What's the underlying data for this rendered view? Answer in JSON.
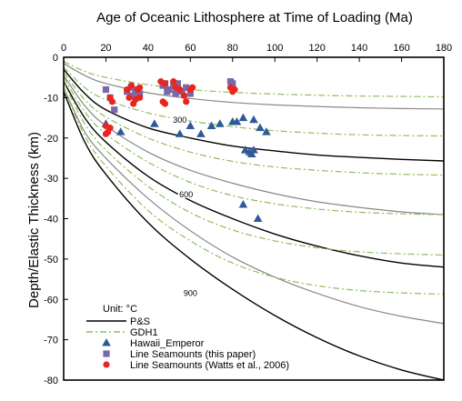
{
  "chart_data": {
    "type": "line",
    "title": "Age of Oceanic Lithosphere at Time of Loading (Ma)",
    "xlabel": "",
    "ylabel": "Depth/Elastic Thickness (km)",
    "xlim": [
      0,
      180
    ],
    "ylim": [
      -80,
      0
    ],
    "x_axis_position": "top",
    "x_ticks": [
      0,
      20,
      40,
      60,
      80,
      100,
      120,
      140,
      160,
      180
    ],
    "y_ticks": [
      0,
      -10,
      -20,
      -30,
      -40,
      -50,
      -60,
      -70,
      -80
    ],
    "legend_title": "Unit:  °C",
    "legend_position": "bottom-left",
    "isotherm_labels": [
      {
        "text": "300",
        "x": 55,
        "y": -15.5
      },
      {
        "text": "600",
        "x": 58,
        "y": -34
      },
      {
        "text": "900",
        "x": 60,
        "y": -58.5
      }
    ],
    "series": [
      {
        "name": "P&S",
        "style": "solid",
        "color": "#000000",
        "points": [
          [
            0,
            -3
          ],
          [
            10,
            -9
          ],
          [
            20,
            -13
          ],
          [
            40,
            -17.5
          ],
          [
            60,
            -20
          ],
          [
            80,
            -22
          ],
          [
            100,
            -23.2
          ],
          [
            120,
            -24.2
          ],
          [
            140,
            -24.8
          ],
          [
            160,
            -25.3
          ],
          [
            180,
            -25.7
          ]
        ]
      },
      {
        "style": "solid",
        "color": "#000000",
        "points": [
          [
            0,
            -6
          ],
          [
            10,
            -15
          ],
          [
            20,
            -21
          ],
          [
            40,
            -29.5
          ],
          [
            60,
            -35.5
          ],
          [
            80,
            -40
          ],
          [
            100,
            -43.8
          ],
          [
            120,
            -46.8
          ],
          [
            140,
            -49.2
          ],
          [
            160,
            -51
          ],
          [
            180,
            -52
          ]
        ]
      },
      {
        "style": "solid",
        "color": "#000000",
        "points": [
          [
            0,
            -8.5
          ],
          [
            10,
            -21
          ],
          [
            20,
            -29
          ],
          [
            40,
            -41
          ],
          [
            60,
            -50
          ],
          [
            80,
            -57.5
          ],
          [
            100,
            -64
          ],
          [
            120,
            -69.5
          ],
          [
            140,
            -74
          ],
          [
            160,
            -77.5
          ],
          [
            180,
            -80
          ]
        ]
      },
      {
        "style": "solid",
        "color": "#888888",
        "points": [
          [
            0,
            -1.5
          ],
          [
            10,
            -4.5
          ],
          [
            20,
            -6.5
          ],
          [
            40,
            -8.8
          ],
          [
            60,
            -10.2
          ],
          [
            80,
            -11.2
          ],
          [
            100,
            -11.8
          ],
          [
            120,
            -12.2
          ],
          [
            140,
            -12.5
          ],
          [
            160,
            -12.7
          ],
          [
            180,
            -12.8
          ]
        ]
      },
      {
        "style": "solid",
        "color": "#888888",
        "points": [
          [
            0,
            -4.5
          ],
          [
            10,
            -12
          ],
          [
            20,
            -17
          ],
          [
            40,
            -23.5
          ],
          [
            60,
            -28
          ],
          [
            80,
            -31.2
          ],
          [
            100,
            -33.8
          ],
          [
            120,
            -35.8
          ],
          [
            140,
            -37.2
          ],
          [
            160,
            -38.3
          ],
          [
            180,
            -39
          ]
        ]
      },
      {
        "style": "solid",
        "color": "#888888",
        "points": [
          [
            0,
            -7.5
          ],
          [
            10,
            -18.5
          ],
          [
            20,
            -25
          ],
          [
            40,
            -35
          ],
          [
            60,
            -43
          ],
          [
            80,
            -49.5
          ],
          [
            100,
            -54.5
          ],
          [
            120,
            -58.5
          ],
          [
            140,
            -61.8
          ],
          [
            160,
            -64.2
          ],
          [
            180,
            -66
          ]
        ]
      },
      {
        "name": "GDH1",
        "style": "dashdot",
        "color": "#8dbf5a",
        "points": [
          [
            0,
            -1
          ],
          [
            10,
            -3.5
          ],
          [
            20,
            -5
          ],
          [
            40,
            -6.8
          ],
          [
            60,
            -8
          ],
          [
            80,
            -8.7
          ],
          [
            100,
            -9.1
          ],
          [
            120,
            -9.4
          ],
          [
            140,
            -9.6
          ],
          [
            160,
            -9.7
          ],
          [
            180,
            -9.8
          ]
        ]
      },
      {
        "style": "dashdot",
        "color": "#8dbf5a",
        "points": [
          [
            0,
            -2.5
          ],
          [
            10,
            -7.5
          ],
          [
            20,
            -10.5
          ],
          [
            40,
            -13.8
          ],
          [
            60,
            -15.8
          ],
          [
            80,
            -17.2
          ],
          [
            100,
            -18.2
          ],
          [
            120,
            -18.8
          ],
          [
            140,
            -19.2
          ],
          [
            160,
            -19.4
          ],
          [
            180,
            -19.5
          ]
        ]
      },
      {
        "style": "dashdot",
        "color": "#8dbf5a",
        "points": [
          [
            0,
            -3.8
          ],
          [
            10,
            -10.5
          ],
          [
            20,
            -14.8
          ],
          [
            40,
            -20
          ],
          [
            60,
            -23.5
          ],
          [
            80,
            -25.8
          ],
          [
            100,
            -27.2
          ],
          [
            120,
            -28
          ],
          [
            140,
            -28.6
          ],
          [
            160,
            -29
          ],
          [
            180,
            -29.2
          ]
        ]
      },
      {
        "style": "dashdot",
        "color": "#8dbf5a",
        "points": [
          [
            0,
            -5
          ],
          [
            10,
            -13.5
          ],
          [
            20,
            -19
          ],
          [
            40,
            -26
          ],
          [
            60,
            -31
          ],
          [
            80,
            -34.3
          ],
          [
            100,
            -36.3
          ],
          [
            120,
            -37.6
          ],
          [
            140,
            -38.4
          ],
          [
            160,
            -38.8
          ],
          [
            180,
            -39
          ]
        ]
      },
      {
        "style": "dashdot",
        "color": "#8dbf5a",
        "points": [
          [
            0,
            -6.2
          ],
          [
            10,
            -16.5
          ],
          [
            20,
            -23
          ],
          [
            40,
            -32
          ],
          [
            60,
            -38.5
          ],
          [
            80,
            -42.8
          ],
          [
            100,
            -45.5
          ],
          [
            120,
            -47.2
          ],
          [
            140,
            -48.2
          ],
          [
            160,
            -48.7
          ],
          [
            180,
            -49
          ]
        ]
      },
      {
        "style": "dashdot",
        "color": "#8dbf5a",
        "points": [
          [
            0,
            -7.5
          ],
          [
            10,
            -19.5
          ],
          [
            20,
            -27
          ],
          [
            40,
            -38
          ],
          [
            60,
            -45.5
          ],
          [
            80,
            -51
          ],
          [
            100,
            -54.5
          ],
          [
            120,
            -56.6
          ],
          [
            140,
            -57.8
          ],
          [
            160,
            -58.4
          ],
          [
            180,
            -58.7
          ]
        ]
      },
      {
        "name": "Hawaii_Emperor",
        "style": "triangle",
        "color": "#2f5a97",
        "points": [
          [
            20,
            -16.5
          ],
          [
            27,
            -18.5
          ],
          [
            43,
            -16.5
          ],
          [
            55,
            -19
          ],
          [
            60,
            -17
          ],
          [
            65,
            -19
          ],
          [
            70,
            -17
          ],
          [
            74,
            -16.5
          ],
          [
            80,
            -16
          ],
          [
            82,
            -16
          ],
          [
            85,
            -15
          ],
          [
            90,
            -15.5
          ],
          [
            86,
            -23
          ],
          [
            88,
            -23.5
          ],
          [
            89,
            -24
          ],
          [
            90,
            -23
          ],
          [
            93,
            -17.5
          ],
          [
            96,
            -18.5
          ],
          [
            85,
            -36.5
          ],
          [
            92,
            -40
          ]
        ]
      },
      {
        "name": "Line Seamounts (this paper)",
        "style": "square",
        "color": "#7b68a8",
        "points": [
          [
            20,
            -8
          ],
          [
            22,
            -10
          ],
          [
            24,
            -13
          ],
          [
            30,
            -8.5
          ],
          [
            32,
            -7.5
          ],
          [
            34,
            -8
          ],
          [
            36,
            -9
          ],
          [
            33,
            -9.5
          ],
          [
            47,
            -7
          ],
          [
            48,
            -6.5
          ],
          [
            49,
            -8.5
          ],
          [
            50,
            -8
          ],
          [
            52,
            -7
          ],
          [
            53,
            -9
          ],
          [
            54,
            -6.5
          ],
          [
            56,
            -8.5
          ],
          [
            58,
            -7.5
          ],
          [
            60,
            -9
          ],
          [
            79,
            -6
          ],
          [
            80,
            -6.5
          ]
        ]
      },
      {
        "name": "Line Seamounts (Watts et al., 2006)",
        "style": "circle",
        "color": "#e8261f",
        "points": [
          [
            22,
            -10
          ],
          [
            23,
            -11
          ],
          [
            20,
            -17
          ],
          [
            21,
            -18.5
          ],
          [
            20,
            -19
          ],
          [
            22,
            -17.5
          ],
          [
            30,
            -8
          ],
          [
            31,
            -10
          ],
          [
            32,
            -7
          ],
          [
            33,
            -11.5
          ],
          [
            34,
            -10.5
          ],
          [
            35,
            -8
          ],
          [
            36,
            -7.5
          ],
          [
            36,
            -10
          ],
          [
            46,
            -6
          ],
          [
            47,
            -11
          ],
          [
            48,
            -11.5
          ],
          [
            48,
            -6.5
          ],
          [
            52,
            -6
          ],
          [
            53,
            -7.5
          ],
          [
            55,
            -8
          ],
          [
            57,
            -9.5
          ],
          [
            58,
            -11
          ],
          [
            60,
            -8
          ],
          [
            61,
            -7.5
          ],
          [
            79,
            -7.5
          ],
          [
            80,
            -8.5
          ],
          [
            81,
            -8
          ]
        ]
      }
    ]
  }
}
